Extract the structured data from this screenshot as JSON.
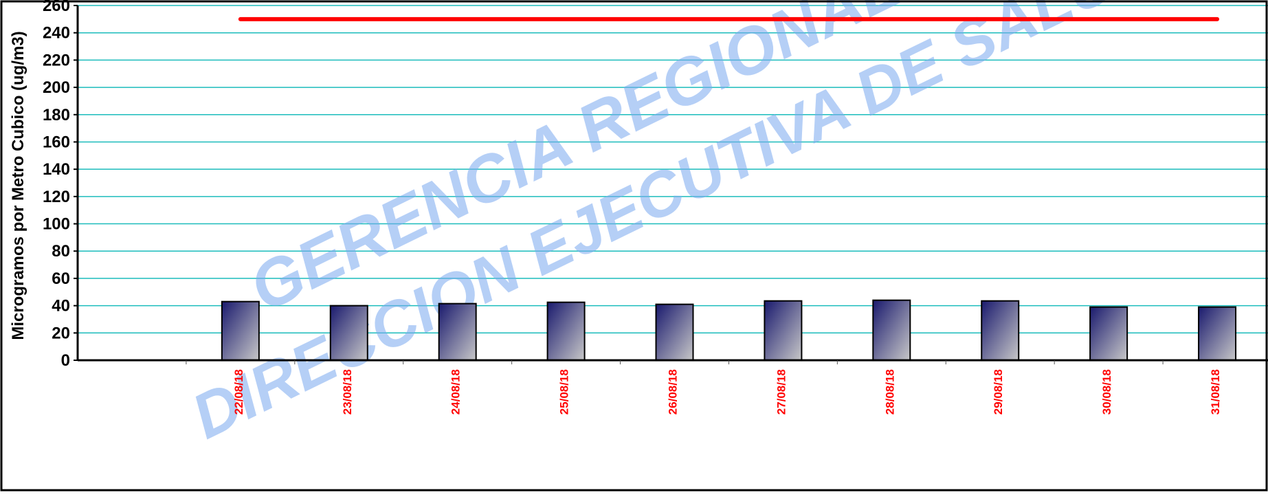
{
  "chart_data": {
    "type": "bar",
    "title": "",
    "xlabel": "",
    "ylabel": "Microgramos por Metro Cubico (ug/m3)",
    "ylim": [
      0,
      260
    ],
    "yticks": [
      0,
      20,
      40,
      60,
      80,
      100,
      120,
      140,
      160,
      180,
      200,
      220,
      240,
      260
    ],
    "grid": true,
    "categories": [
      "",
      "22/08/18",
      "23/08/18",
      "24/08/18",
      "25/08/18",
      "26/08/18",
      "27/08/18",
      "28/08/18",
      "29/08/18",
      "30/08/18",
      "31/08/18"
    ],
    "values": [
      null,
      43,
      40,
      41.5,
      42.5,
      41,
      43.5,
      44,
      43.5,
      39,
      39
    ],
    "reference_line": {
      "value": 250,
      "color": "#ff0000"
    },
    "colors": {
      "bar_top": "#1a1a6e",
      "bar_bottom": "#c8c8c8",
      "grid": "#1bbcbc",
      "tick_label": "#ff0000"
    }
  },
  "watermark": {
    "line1": "GERENCIA REGIONAL DE SALUD",
    "line2": "DIRECCION EJECUTIVA DE SALUD AMBIENTAL"
  }
}
